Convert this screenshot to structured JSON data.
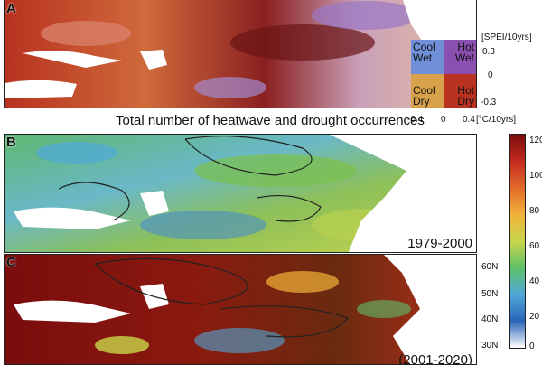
{
  "panels": {
    "a": {
      "letter": "A"
    },
    "b": {
      "letter": "B",
      "period": "1979-2000"
    },
    "c": {
      "letter": "C",
      "period": "(2001-2020)"
    }
  },
  "heatwave_title": "Total number of heatwave and drought occurrences",
  "bivariate_legend": {
    "quadrants": {
      "cool_wet": [
        "Cool",
        "Wet"
      ],
      "hot_wet": [
        "Hot",
        "Wet"
      ],
      "cool_dry": [
        "Cool",
        "Dry"
      ],
      "hot_dry": [
        "Hot",
        "Dry"
      ]
    },
    "colors": {
      "cool_wet": "#6f8fd8",
      "hot_wet": "#8a4fb0",
      "cool_dry": "#d7a24a",
      "hot_dry": "#b8321f"
    },
    "y_unit": "[SPEI/10yrs]",
    "y_ticks": [
      "0.3",
      "0",
      "-0.3"
    ],
    "x_unit": "[°C/10yrs]",
    "x_ticks": [
      "-0.4",
      "0",
      "0.4"
    ]
  },
  "colorbar": {
    "ticks": [
      "120",
      "100",
      "80",
      "60",
      "40",
      "20",
      "0"
    ],
    "colors": [
      "#ffffff",
      "#2a64b8",
      "#4fa8d8",
      "#5fc06a",
      "#c8d64a",
      "#f2b23a",
      "#e26a2c",
      "#c42a1e",
      "#7a0c0c"
    ]
  },
  "latitude_labels": [
    "60N",
    "50N",
    "40N",
    "30N"
  ]
}
